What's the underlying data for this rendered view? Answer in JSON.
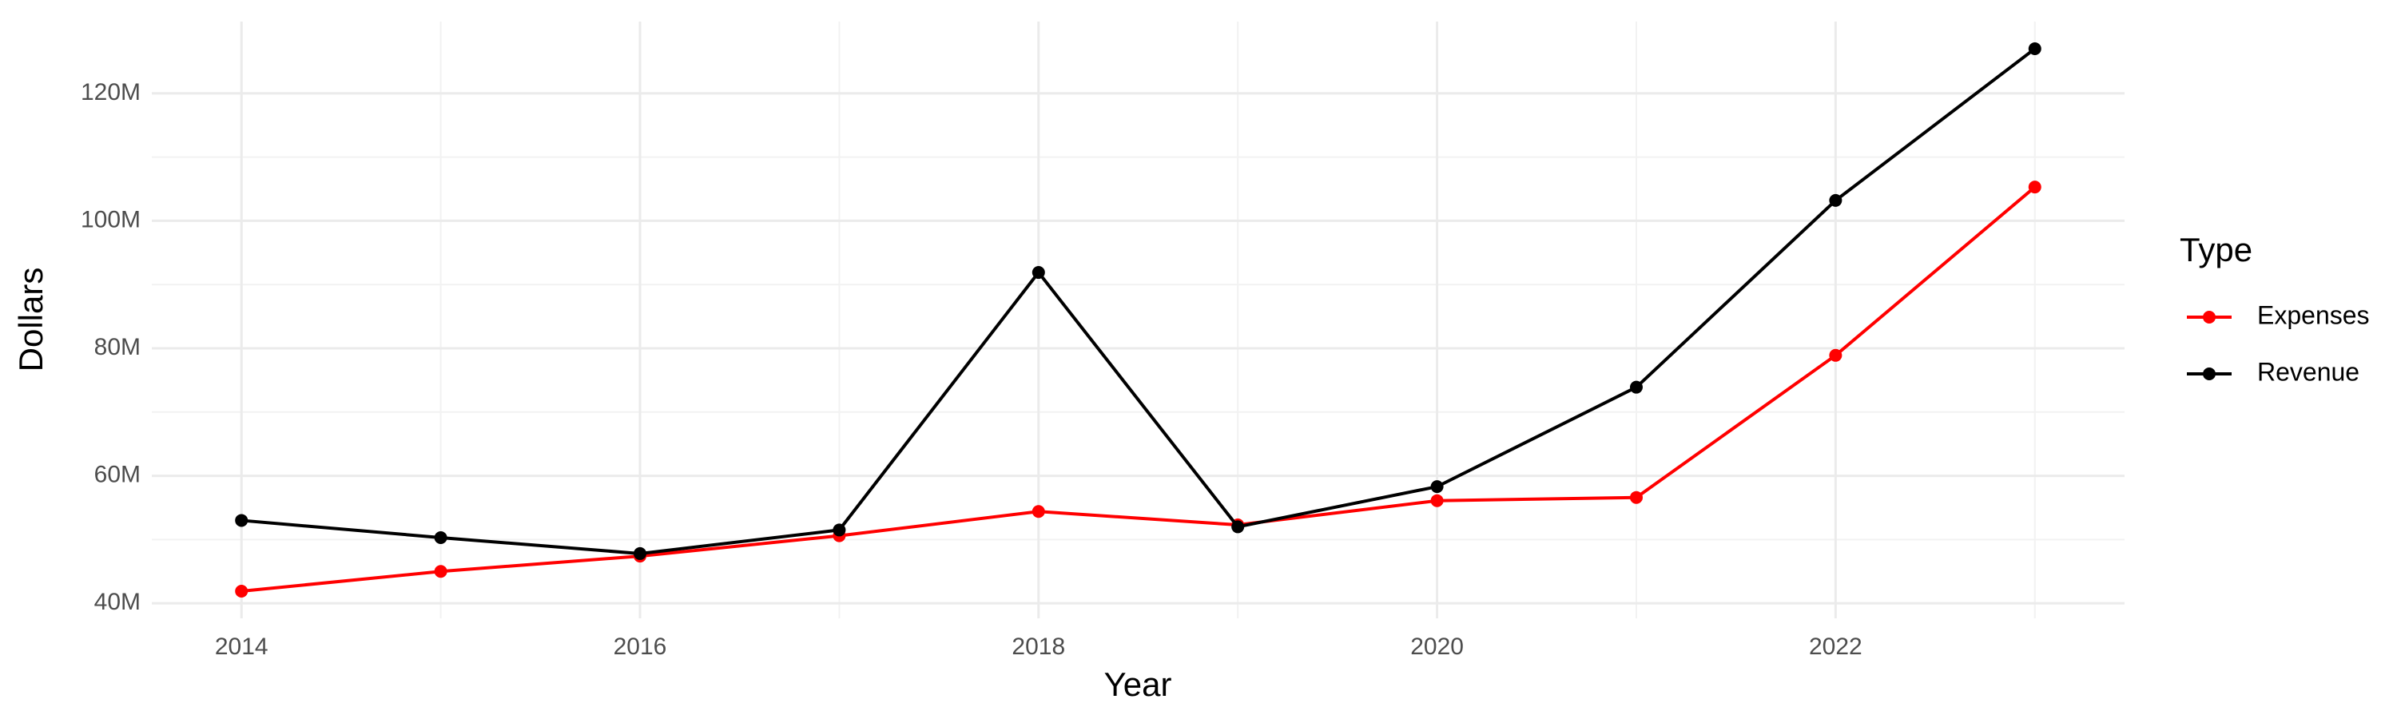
{
  "chart_data": {
    "type": "line",
    "x_label": "Year",
    "y_label": "Dollars",
    "legend_title": "Type",
    "legend_position": "right",
    "grid": true,
    "minor_grid": true,
    "x": [
      2014,
      2015,
      2016,
      2017,
      2018,
      2019,
      2020,
      2021,
      2022,
      2023
    ],
    "series": [
      {
        "name": "Expenses",
        "color": "#ff0000",
        "values": [
          41900000,
          45000000,
          47400000,
          50600000,
          54400000,
          52300000,
          56100000,
          56600000,
          78900000,
          105300000
        ]
      },
      {
        "name": "Revenue",
        "color": "#000000",
        "values": [
          53000000,
          50300000,
          47800000,
          51500000,
          91900000,
          52000000,
          58300000,
          73900000,
          103200000,
          127000000
        ]
      }
    ],
    "xlim": [
      2013.55,
      2023.45
    ],
    "xticks": [
      2014,
      2016,
      2018,
      2020,
      2022
    ],
    "ylim": [
      37640000,
      131260000
    ],
    "yticks": [
      {
        "value": 40000000,
        "label": "40M"
      },
      {
        "value": 60000000,
        "label": "60M"
      },
      {
        "value": 80000000,
        "label": "80M"
      },
      {
        "value": 100000000,
        "label": "100M"
      },
      {
        "value": 120000000,
        "label": "120M"
      }
    ]
  }
}
